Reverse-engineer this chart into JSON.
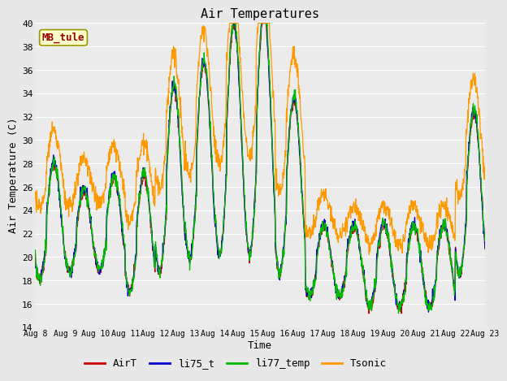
{
  "title": "Air Temperatures",
  "ylabel": "Air Temperature (C)",
  "xlabel": "Time",
  "site_label": "MB_tule",
  "ylim": [
    14,
    40
  ],
  "yticks": [
    14,
    16,
    18,
    20,
    22,
    24,
    26,
    28,
    30,
    32,
    34,
    36,
    38,
    40
  ],
  "xtick_labels": [
    "Aug 8",
    "Aug 9",
    "Aug 10",
    "Aug 11",
    "Aug 12",
    "Aug 13",
    "Aug 14",
    "Aug 15",
    "Aug 16",
    "Aug 17",
    "Aug 18",
    "Aug 19",
    "Aug 20",
    "Aug 21",
    "Aug 22",
    "Aug 23"
  ],
  "colors": {
    "AirT": "#cc0000",
    "li75_t": "#0000cc",
    "li77_temp": "#00bb00",
    "Tsonic": "#ff9900"
  },
  "bg_color": "#e8e8e8",
  "plot_bg": "#ebebeb",
  "grid_color": "#ffffff",
  "n_days": 15,
  "pts_per_day": 96,
  "day_peaks": [
    27,
    25,
    26,
    26,
    33,
    35,
    38,
    39,
    32,
    22,
    22,
    22,
    22,
    22,
    31
  ],
  "day_mins": [
    17,
    18,
    18,
    16,
    17,
    18,
    18,
    18,
    17,
    16,
    16,
    15,
    15,
    15,
    17
  ],
  "tsonic_extra": [
    3,
    3,
    3,
    3,
    3,
    3,
    3,
    4,
    4,
    3,
    2,
    2,
    2,
    2,
    3
  ]
}
